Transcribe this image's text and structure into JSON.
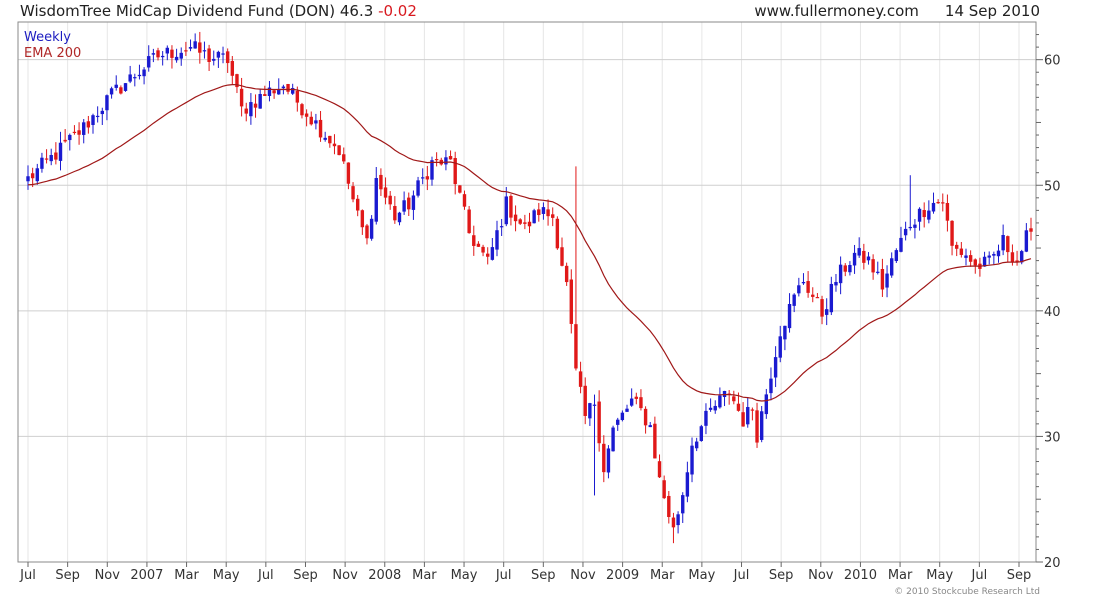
{
  "header": {
    "title": "WisdomTree MidCap Dividend Fund (DON)",
    "price": "46.3",
    "change": "-0.02",
    "site": "www.fullermoney.com",
    "date": "14 Sep 2010"
  },
  "legend": {
    "weekly": "Weekly",
    "ema": "EMA 200"
  },
  "copyright": "© 2010 Stockcube Research Ltd",
  "colors": {
    "up": "#1a1ad0",
    "down": "#e01818",
    "ema": "#a01818",
    "grid": "#cfcfcf"
  },
  "chart_data": {
    "type": "candlestick",
    "interval": "weekly",
    "ylim": [
      20,
      63
    ],
    "yticks": [
      20,
      30,
      40,
      50,
      60
    ],
    "x_tick_labels": [
      "Jul",
      "Sep",
      "Nov",
      "2007",
      "Mar",
      "May",
      "Jul",
      "Sep",
      "Nov",
      "2008",
      "Mar",
      "May",
      "Jul",
      "Sep",
      "Nov",
      "2009",
      "Mar",
      "May",
      "Jul",
      "Sep",
      "Nov",
      "2010",
      "Mar",
      "May",
      "Jul",
      "Sep"
    ],
    "anchors": [
      [
        0,
        50.5
      ],
      [
        6,
        52.5
      ],
      [
        12,
        54.6
      ],
      [
        18,
        57.2
      ],
      [
        22,
        58.5
      ],
      [
        28,
        60.3
      ],
      [
        35,
        61.0
      ],
      [
        39,
        60.2
      ],
      [
        43,
        60.0
      ],
      [
        46,
        56.0
      ],
      [
        52,
        57.5
      ],
      [
        55,
        58.0
      ],
      [
        60,
        55.8
      ],
      [
        63,
        54.5
      ],
      [
        67,
        52.8
      ],
      [
        71,
        47.5
      ],
      [
        73,
        45.5
      ],
      [
        75,
        50.5
      ],
      [
        79,
        47.5
      ],
      [
        82,
        48.5
      ],
      [
        87,
        51.8
      ],
      [
        91,
        51.8
      ],
      [
        95,
        46.2
      ],
      [
        99,
        43.8
      ],
      [
        103,
        48.5
      ],
      [
        107,
        46.5
      ],
      [
        110,
        48.0
      ],
      [
        113,
        47.5
      ],
      [
        116,
        42.0
      ],
      [
        118,
        35.0
      ],
      [
        120,
        31.5
      ],
      [
        122,
        32.8
      ],
      [
        124,
        27.5
      ],
      [
        126,
        30.5
      ],
      [
        130,
        32.8
      ],
      [
        132,
        32.0
      ],
      [
        134,
        30.8
      ],
      [
        136,
        26.5
      ],
      [
        139,
        22.5
      ],
      [
        141,
        25.5
      ],
      [
        143,
        29.5
      ],
      [
        147,
        32.0
      ],
      [
        151,
        33.6
      ],
      [
        154,
        31.3
      ],
      [
        156,
        32.3
      ],
      [
        157,
        30.2
      ],
      [
        159,
        33.5
      ],
      [
        162,
        38.5
      ],
      [
        165,
        41.0
      ],
      [
        167,
        42.5
      ],
      [
        171,
        39.8
      ],
      [
        174,
        42.5
      ],
      [
        178,
        44.5
      ],
      [
        181,
        44.0
      ],
      [
        184,
        42.0
      ],
      [
        187,
        44.8
      ],
      [
        190,
        47.0
      ],
      [
        194,
        48.5
      ],
      [
        197,
        48.8
      ],
      [
        199,
        45.0
      ],
      [
        202,
        44.5
      ],
      [
        204,
        43.5
      ],
      [
        207,
        43.8
      ],
      [
        210,
        45.5
      ],
      [
        213,
        44.0
      ],
      [
        215,
        45.8
      ],
      [
        216,
        46.3
      ]
    ]
  }
}
